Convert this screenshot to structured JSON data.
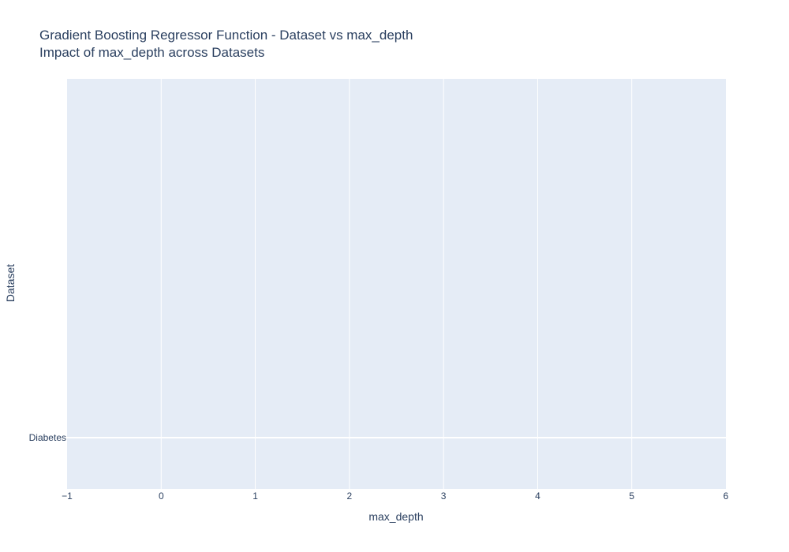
{
  "chart_data": {
    "type": "scatter",
    "title": "Gradient Boosting Regressor Function - Dataset vs max_depth",
    "subtitle": "Impact of max_depth across Datasets",
    "xlabel": "max_depth",
    "ylabel": "Dataset",
    "xlim": [
      -1,
      6
    ],
    "x_ticks": [
      -1,
      0,
      1,
      2,
      3,
      4,
      5,
      6
    ],
    "x_tick_labels": [
      "−1",
      "0",
      "1",
      "2",
      "3",
      "4",
      "5",
      "6"
    ],
    "categories": [
      "Diabetes"
    ],
    "series": [],
    "grid": true,
    "legend": "none",
    "colors": {
      "plot_background": "#e5ecf6",
      "grid": "#ffffff",
      "text": "#2a3f5f"
    }
  }
}
